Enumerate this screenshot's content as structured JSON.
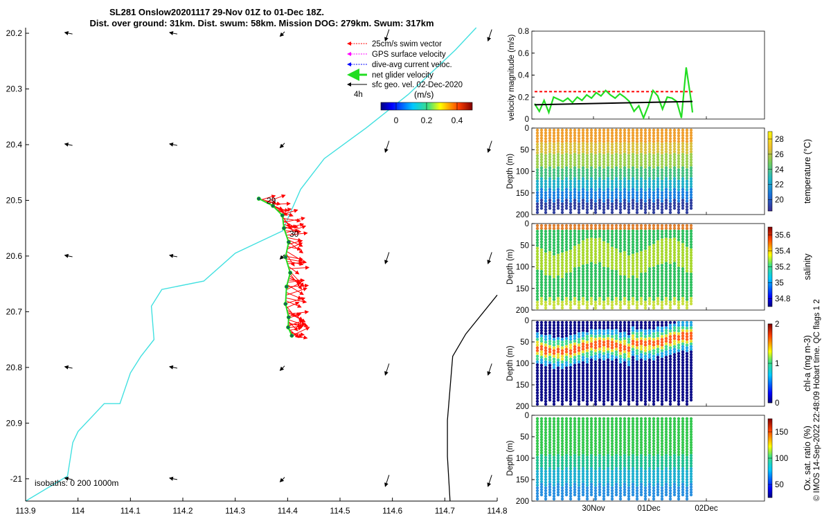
{
  "title": {
    "line1": "SL281 Onslow20201117 29-Nov 01Z to 01-Dec 18Z.",
    "line2": "Dist. over ground: 31km. Dist. swum: 58km. Mission DOG: 279km. Swum: 317km"
  },
  "colors": {
    "swim_vector": "#ff0000",
    "gps_velocity": "#ff00ff",
    "current_velocity": "#0000ff",
    "net_velocity": "#22dd22",
    "geo_velocity": "#000000",
    "coastline": "#40e0e0",
    "isobath_200": "#000000"
  },
  "map": {
    "xlim": [
      113.9,
      114.8
    ],
    "ylim": [
      -21.04,
      -20.19
    ],
    "xticks": [
      "113.9",
      "114",
      "114.1",
      "114.2",
      "114.3",
      "114.4",
      "114.5",
      "114.6",
      "114.7",
      "114.8"
    ],
    "yticks": [
      "20.2",
      "20.3",
      "20.4",
      "20.5",
      "20.6",
      "20.7",
      "20.8",
      "20.9",
      "-21"
    ],
    "day_labels": [
      "29",
      "30"
    ],
    "isobaths_label": "isobaths: 0   200  1000m",
    "legend": {
      "swim": "25cm/s swim vector",
      "gps": "GPS surface velocity",
      "current": "dive-avg current veloc.",
      "net": "net glider velocity",
      "geo": "sfc geo. vel. 02-Dec-2020",
      "interval": "4h"
    },
    "colorbar": {
      "label": "(m/s)",
      "ticks": [
        "0",
        "0.2",
        "0.4"
      ],
      "range": [
        -0.1,
        0.5
      ]
    }
  },
  "velocity_panel": {
    "ylabel": "velocity magnitude (m/s)",
    "yticks": [
      "0",
      "0.2",
      "0.4",
      "0.6",
      "0.8"
    ],
    "ylim": [
      0,
      0.8
    ]
  },
  "time_axis": {
    "labels": [
      "30Nov",
      "01Dec",
      "02Dec"
    ],
    "start": "29-Nov 01Z",
    "end": "01-Dec 18Z"
  },
  "profiles": [
    {
      "key": "temperature",
      "ylabel": "Depth (m)",
      "yticks": [
        "0",
        "50",
        "100",
        "150",
        "200"
      ],
      "cb_label": "temperature (°C)",
      "cb_ticks": [
        "28",
        "26",
        "24",
        "22",
        "20"
      ],
      "cb_range": [
        18.5,
        29
      ]
    },
    {
      "key": "salinity",
      "ylabel": "Depth (m)",
      "yticks": [
        "0",
        "50",
        "100",
        "150",
        "200"
      ],
      "cb_label": "salinity",
      "cb_ticks": [
        "35.6",
        "35.4",
        "35.2",
        "35",
        "34.8"
      ],
      "cb_range": [
        34.7,
        35.7
      ]
    },
    {
      "key": "chla",
      "ylabel": "Depth (m)",
      "yticks": [
        "0",
        "50",
        "100",
        "150",
        "200"
      ],
      "cb_label": "chl-a (mg m-3)",
      "cb_ticks": [
        "2",
        "1",
        "0"
      ],
      "cb_range": [
        0,
        2
      ]
    },
    {
      "key": "oxygen",
      "ylabel": "Depth (m)",
      "yticks": [
        "0",
        "50",
        "100",
        "150",
        "200"
      ],
      "cb_label": "Ox. sat. ratio (%)",
      "cb_ticks": [
        "150",
        "100",
        "50"
      ],
      "cb_range": [
        25,
        175
      ]
    }
  ],
  "footer_text": "© IMOS 14-Sep-2022 22:48:09 Hobart time. QC flags 1  2",
  "chart_data": [
    {
      "type": "scatter",
      "title": "SL281 Onslow20201117 29-Nov 01Z to 01-Dec 18Z.",
      "x_label": "",
      "y_label": "",
      "xlim": [
        113.9,
        114.8
      ],
      "ylim": [
        -21.04,
        -20.19
      ],
      "series": [
        {
          "name": "net glider velocity",
          "points": [
            [
              114.345,
              -20.497
            ],
            [
              114.372,
              -20.51
            ],
            [
              114.39,
              -20.527
            ],
            [
              114.393,
              -20.55
            ],
            [
              114.402,
              -20.575
            ],
            [
              114.396,
              -20.602
            ],
            [
              114.405,
              -20.63
            ],
            [
              114.398,
              -20.655
            ],
            [
              114.396,
              -20.686
            ],
            [
              114.402,
              -20.71
            ],
            [
              114.401,
              -20.728
            ],
            [
              114.408,
              -20.743
            ]
          ]
        }
      ],
      "coastline": [
        [
          114.76,
          -20.19
        ],
        [
          114.72,
          -20.23
        ],
        [
          114.63,
          -20.31
        ],
        [
          114.55,
          -20.37
        ],
        [
          114.47,
          -20.425
        ],
        [
          114.425,
          -20.48
        ],
        [
          114.39,
          -20.555
        ],
        [
          114.3,
          -20.595
        ],
        [
          114.24,
          -20.645
        ],
        [
          114.16,
          -20.66
        ],
        [
          114.14,
          -20.69
        ],
        [
          114.145,
          -20.75
        ],
        [
          114.12,
          -20.78
        ],
        [
          114.1,
          -20.81
        ],
        [
          114.08,
          -20.865
        ],
        [
          114.05,
          -20.865
        ],
        [
          114.03,
          -20.885
        ],
        [
          114.0,
          -20.915
        ],
        [
          113.99,
          -20.935
        ],
        [
          113.98,
          -20.995
        ],
        [
          113.9,
          -21.04
        ]
      ],
      "isobath_200": [
        [
          114.8,
          -20.67
        ],
        [
          114.74,
          -20.74
        ],
        [
          114.715,
          -20.78
        ],
        [
          114.705,
          -20.895
        ],
        [
          114.705,
          -20.96
        ],
        [
          114.71,
          -21.04
        ]
      ],
      "geo_vectors_u_v": {
        "ul": [
          -0.1,
          0.02
        ],
        "mid": [
          -0.06,
          -0.04
        ],
        "right": [
          -0.05,
          -0.1
        ]
      }
    },
    {
      "type": "line",
      "title": "",
      "ylabel": "velocity magnitude (m/s)",
      "ylim": [
        0,
        0.8
      ],
      "series": [
        {
          "name": "25cm/s swim vector",
          "values": [
            0.25,
            0.25
          ]
        },
        {
          "name": "net glider velocity",
          "x_frac": [
            0,
            0.03,
            0.06,
            0.09,
            0.12,
            0.15,
            0.18,
            0.21,
            0.24,
            0.27,
            0.3,
            0.33,
            0.36,
            0.39,
            0.42,
            0.45,
            0.48,
            0.51,
            0.54,
            0.57,
            0.6,
            0.63,
            0.66,
            0.69,
            0.72,
            0.75,
            0.78,
            0.81,
            0.84,
            0.87,
            0.9,
            0.93,
            0.96,
            0.99,
            1.0
          ],
          "values": [
            0.14,
            0.07,
            0.17,
            0.06,
            0.2,
            0.18,
            0.16,
            0.19,
            0.15,
            0.2,
            0.17,
            0.22,
            0.19,
            0.24,
            0.21,
            0.26,
            0.22,
            0.19,
            0.23,
            0.2,
            0.16,
            0.07,
            0.12,
            0.01,
            0.12,
            0.26,
            0.21,
            0.09,
            0.2,
            0.19,
            0.16,
            0.01,
            0.47,
            0.18,
            0.06
          ]
        },
        {
          "name": "dive-avg current trend",
          "values": [
            0.13,
            0.16
          ]
        }
      ]
    }
  ]
}
